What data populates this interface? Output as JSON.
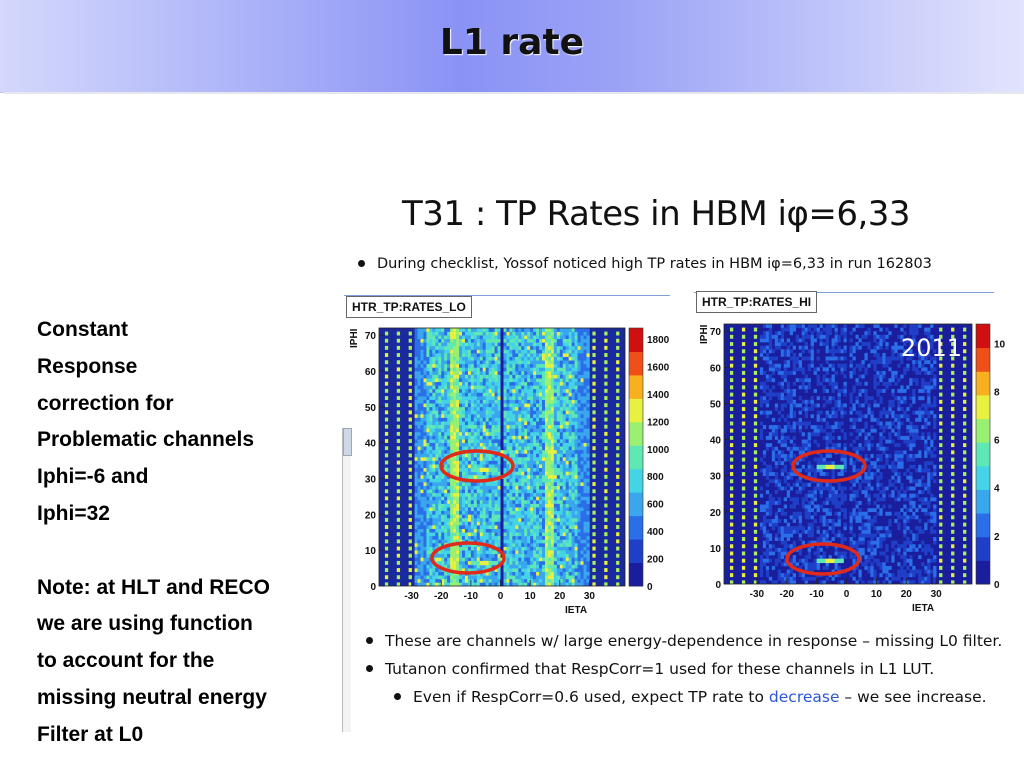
{
  "header": {
    "title": "L1 rate"
  },
  "notes": {
    "lines_a": [
      "Constant",
      "Response",
      "correction for",
      "Problematic channels",
      "Iphi=-6 and",
      "Iphi=32"
    ],
    "lines_b": [
      "Note: at HLT and RECO",
      "we are using function",
      "to account for the",
      "missing neutral energy",
      "Filter at L0"
    ]
  },
  "slide": {
    "title": "T31 : TP Rates in HBM iφ=6,33",
    "bullet1": "During checklist, Yossof noticed high TP rates in HBM iφ=6,33 in run 162803",
    "bullet2": "These are channels w/ large energy-dependence in response – missing L0 filter.",
    "bullet3": "Tutanon confirmed that RespCorr=1 used for these channels in L1 LUT.",
    "bullet4_pre": "Even if RespCorr=0.6 used, expect TP rate to ",
    "bullet4_hl": "decrease",
    "bullet4_post": " – we see increase."
  },
  "plots": {
    "left": {
      "tab": "HTR_TP:RATES_LO",
      "ylabel": "IPHI",
      "xlabel": "IETA",
      "xticks": [
        "-30",
        "-20",
        "-10",
        "0",
        "10",
        "20",
        "30"
      ],
      "yticks": [
        "0",
        "10",
        "20",
        "30",
        "40",
        "50",
        "60",
        "70"
      ],
      "zticks": [
        "0",
        "200",
        "400",
        "600",
        "800",
        "1000",
        "1200",
        "1400",
        "1600",
        "1800"
      ]
    },
    "right": {
      "tab": "HTR_TP:RATES_HI",
      "ylabel": "IPHI",
      "xlabel": "IETA",
      "year": "2011",
      "xticks": [
        "-30",
        "-20",
        "-10",
        "0",
        "10",
        "20",
        "30"
      ],
      "yticks": [
        "0",
        "10",
        "20",
        "30",
        "40",
        "50",
        "60",
        "70"
      ],
      "zticks": [
        "0",
        "2",
        "4",
        "6",
        "8",
        "10"
      ]
    }
  },
  "colors": {
    "highlight": "#2b57d6",
    "circle": "#e02a1a"
  }
}
